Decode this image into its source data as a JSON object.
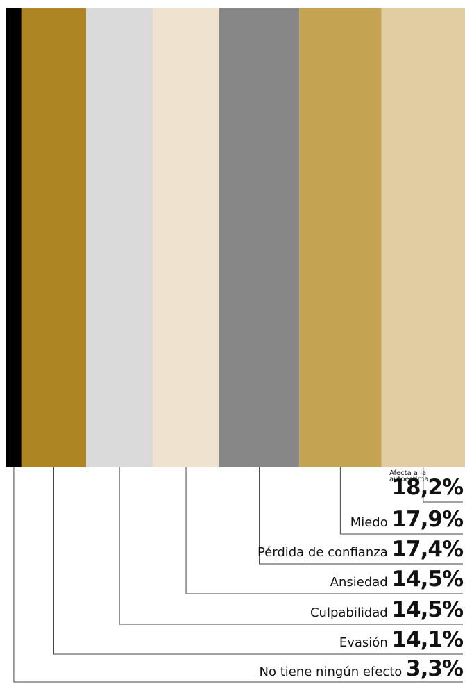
{
  "chart_data": {
    "type": "bar",
    "subtype": "100%-stacked-horizontal-columns",
    "categories": [
      "No tiene ningún efecto",
      "Evasión",
      "Culpabilidad",
      "Ansiedad",
      "Pérdida de confianza",
      "Miedo",
      "Afecta a la autoestima"
    ],
    "values": [
      3.3,
      14.1,
      14.5,
      14.5,
      17.4,
      17.9,
      18.2
    ],
    "value_labels": [
      "3,3%",
      "14,1%",
      "14,5%",
      "14,5%",
      "17,4%",
      "17,9%",
      "18,2%"
    ],
    "colors": [
      "#000000",
      "#ad8523",
      "#dadada",
      "#efe3d0",
      "#878787",
      "#c4a353",
      "#e2cca2"
    ],
    "small_label_lines": [
      "Afecta a la",
      "autoestima"
    ],
    "unit": "%",
    "legend": "none",
    "grid": false
  }
}
